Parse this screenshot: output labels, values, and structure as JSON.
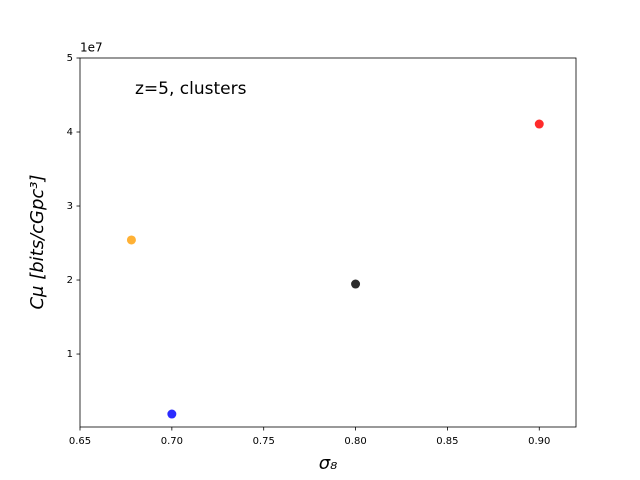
{
  "chart_data": {
    "type": "scatter",
    "annotation": "z=5, clusters",
    "xlabel": "σ₈",
    "ylabel": "Cμ [bits/cGpc³]",
    "y_offset_label": "1e7",
    "x": [
      0.678,
      0.7,
      0.8,
      0.9
    ],
    "values": [
      25410000,
      1890000,
      19460000,
      41080000
    ],
    "colors": [
      "#ffa81f",
      "#1414ff",
      "#141414",
      "#ff1414"
    ],
    "xlim": [
      0.65,
      0.92
    ],
    "ylim": [
      140000,
      50000000
    ],
    "xticks": [
      0.65,
      {
        "value": 0.7,
        "label": "0.70"
      },
      0.75,
      {
        "value": 0.8,
        "label": "0.80"
      },
      0.85,
      {
        "value": 0.9,
        "label": "0.90"
      }
    ],
    "yticks": [
      {
        "value": 10000000,
        "label": "1"
      },
      {
        "value": 20000000,
        "label": "2"
      },
      {
        "value": 30000000,
        "label": "3"
      },
      {
        "value": 40000000,
        "label": "4"
      },
      {
        "value": 50000000,
        "label": "5"
      }
    ],
    "grid": false
  }
}
